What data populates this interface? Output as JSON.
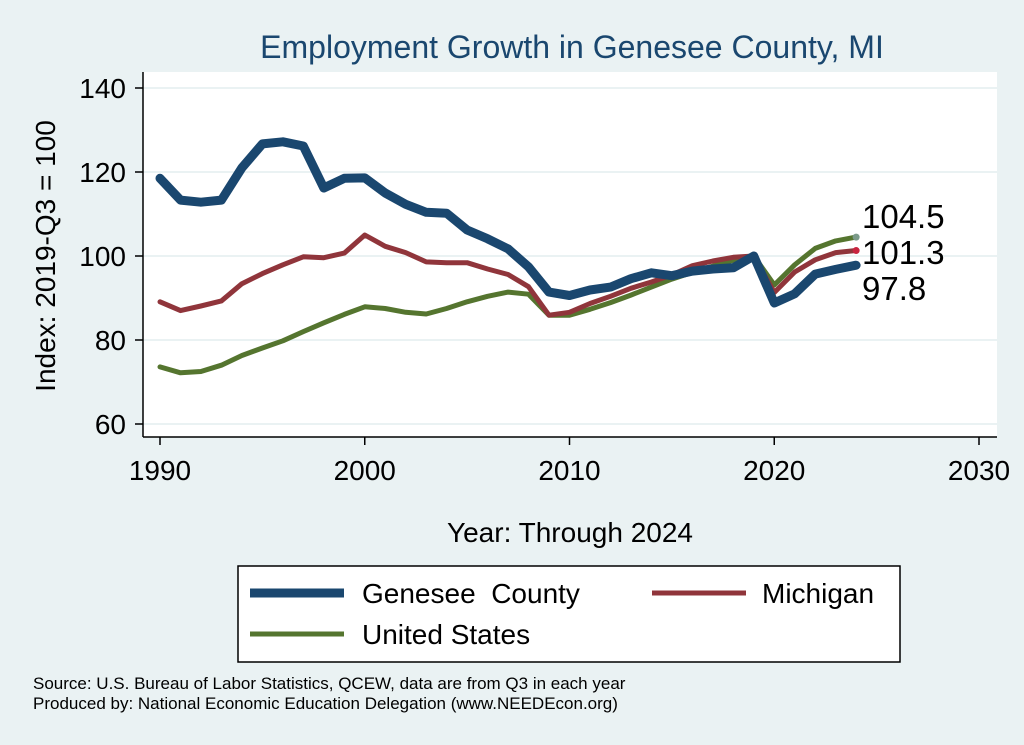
{
  "chart_data": {
    "type": "line",
    "title": "Employment Growth in Genesee County, MI",
    "xlabel": "Year: Through 2024",
    "ylabel": "Index: 2019-Q3 = 100",
    "xlim": [
      1990,
      2030
    ],
    "ylim": [
      57,
      143
    ],
    "xticks": [
      "1990",
      "2000",
      "2010",
      "2020",
      "2030"
    ],
    "yticks": [
      "60",
      "80",
      "100",
      "120",
      "140"
    ],
    "grid": true,
    "legend_position": "bottom",
    "x": [
      1990,
      1991,
      1992,
      1993,
      1994,
      1995,
      1996,
      1997,
      1998,
      1999,
      2000,
      2001,
      2002,
      2003,
      2004,
      2005,
      2006,
      2007,
      2008,
      2009,
      2010,
      2011,
      2012,
      2013,
      2014,
      2015,
      2016,
      2017,
      2018,
      2019,
      2020,
      2021,
      2022,
      2023,
      2024
    ],
    "series": [
      {
        "name": "Genesee  County",
        "color": "#1a476f",
        "values": [
          118.5,
          113.3,
          112.8,
          113.3,
          121.0,
          126.7,
          127.2,
          126.2,
          116.2,
          118.5,
          118.6,
          115.0,
          112.3,
          110.4,
          110.2,
          106.2,
          104.1,
          101.7,
          97.4,
          91.4,
          90.6,
          91.9,
          92.6,
          94.6,
          96.0,
          95.3,
          96.4,
          96.9,
          97.2,
          100.0,
          88.8,
          91.0,
          95.7,
          96.8,
          97.8
        ],
        "end_label": "97.8"
      },
      {
        "name": "Michigan",
        "color": "#90353b",
        "values": [
          89.1,
          87.0,
          88.1,
          89.3,
          93.4,
          95.8,
          97.9,
          99.8,
          99.6,
          100.7,
          105.0,
          102.3,
          100.8,
          98.6,
          98.4,
          98.4,
          96.9,
          95.6,
          92.7,
          85.9,
          86.6,
          88.7,
          90.4,
          92.3,
          93.8,
          95.5,
          97.7,
          98.8,
          99.7,
          100.0,
          91.3,
          96.2,
          99.1,
          100.8,
          101.3
        ],
        "end_label": "101.3"
      },
      {
        "name": "United States",
        "color": "#55752f",
        "values": [
          73.6,
          72.2,
          72.5,
          74.0,
          76.3,
          78.1,
          79.8,
          82.0,
          84.1,
          86.1,
          87.9,
          87.5,
          86.6,
          86.2,
          87.5,
          89.1,
          90.4,
          91.4,
          90.9,
          85.9,
          85.9,
          87.3,
          88.9,
          90.7,
          92.6,
          94.5,
          96.1,
          97.6,
          99.0,
          100.0,
          93.1,
          97.9,
          101.8,
          103.6,
          104.5
        ],
        "end_label": "104.5"
      }
    ]
  },
  "source_note": "Source: U.S. Bureau of Labor Statistics, QCEW, data are from Q3 in each year",
  "produced_note": "Produced by: National Economic Education Delegation (www.NEEDEcon.org)",
  "colors": {
    "background": "#eaf2f3",
    "plot_background": "#ffffff",
    "grid": "#eaf2f3",
    "title": "#1a476f"
  }
}
